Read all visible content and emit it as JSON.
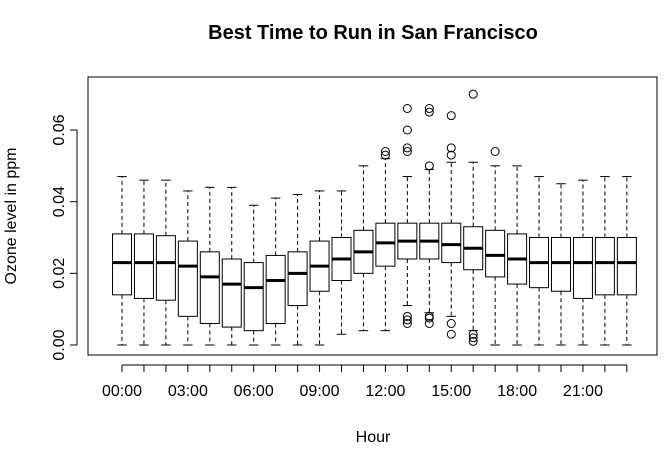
{
  "chart_data": {
    "type": "boxplot",
    "title": "Best Time to Run in San Francisco",
    "xlabel": "Hour",
    "ylabel": "Ozone level in ppm",
    "ylim": [
      0,
      0.072
    ],
    "yticks": [
      0.0,
      0.02,
      0.04,
      0.06
    ],
    "ytick_labels": [
      "0.00",
      "0.02",
      "0.04",
      "0.06"
    ],
    "categories": [
      "00:00",
      "01:00",
      "02:00",
      "03:00",
      "04:00",
      "05:00",
      "06:00",
      "07:00",
      "08:00",
      "09:00",
      "10:00",
      "11:00",
      "12:00",
      "13:00",
      "14:00",
      "15:00",
      "16:00",
      "17:00",
      "18:00",
      "19:00",
      "20:00",
      "21:00",
      "22:00",
      "23:00"
    ],
    "xtick_labels_shown": [
      {
        "index": 0,
        "label": "00:00"
      },
      {
        "index": 3,
        "label": "03:00"
      },
      {
        "index": 6,
        "label": "06:00"
      },
      {
        "index": 9,
        "label": "09:00"
      },
      {
        "index": 12,
        "label": "12:00"
      },
      {
        "index": 15,
        "label": "15:00"
      },
      {
        "index": 18,
        "label": "18:00"
      },
      {
        "index": 21,
        "label": "21:00"
      }
    ],
    "grid": false,
    "boxes": [
      {
        "whisker_low": 0.0,
        "q1": 0.014,
        "median": 0.023,
        "q3": 0.031,
        "whisker_high": 0.047,
        "outliers": []
      },
      {
        "whisker_low": 0.0,
        "q1": 0.013,
        "median": 0.023,
        "q3": 0.031,
        "whisker_high": 0.046,
        "outliers": []
      },
      {
        "whisker_low": 0.0,
        "q1": 0.0125,
        "median": 0.023,
        "q3": 0.0305,
        "whisker_high": 0.046,
        "outliers": []
      },
      {
        "whisker_low": 0.0,
        "q1": 0.008,
        "median": 0.022,
        "q3": 0.029,
        "whisker_high": 0.043,
        "outliers": []
      },
      {
        "whisker_low": 0.0,
        "q1": 0.006,
        "median": 0.019,
        "q3": 0.026,
        "whisker_high": 0.044,
        "outliers": []
      },
      {
        "whisker_low": 0.0,
        "q1": 0.005,
        "median": 0.017,
        "q3": 0.024,
        "whisker_high": 0.044,
        "outliers": []
      },
      {
        "whisker_low": 0.0,
        "q1": 0.004,
        "median": 0.016,
        "q3": 0.023,
        "whisker_high": 0.039,
        "outliers": []
      },
      {
        "whisker_low": 0.0,
        "q1": 0.006,
        "median": 0.018,
        "q3": 0.025,
        "whisker_high": 0.041,
        "outliers": []
      },
      {
        "whisker_low": 0.0,
        "q1": 0.011,
        "median": 0.02,
        "q3": 0.026,
        "whisker_high": 0.042,
        "outliers": []
      },
      {
        "whisker_low": 0.0,
        "q1": 0.015,
        "median": 0.022,
        "q3": 0.029,
        "whisker_high": 0.043,
        "outliers": []
      },
      {
        "whisker_low": 0.003,
        "q1": 0.018,
        "median": 0.024,
        "q3": 0.03,
        "whisker_high": 0.043,
        "outliers": []
      },
      {
        "whisker_low": 0.004,
        "q1": 0.02,
        "median": 0.026,
        "q3": 0.032,
        "whisker_high": 0.05,
        "outliers": []
      },
      {
        "whisker_low": 0.004,
        "q1": 0.022,
        "median": 0.0285,
        "q3": 0.034,
        "whisker_high": 0.052,
        "outliers": [
          0.053,
          0.054
        ]
      },
      {
        "whisker_low": 0.011,
        "q1": 0.024,
        "median": 0.029,
        "q3": 0.034,
        "whisker_high": 0.047,
        "outliers": [
          0.006,
          0.007,
          0.008,
          0.054,
          0.055,
          0.06,
          0.066
        ]
      },
      {
        "whisker_low": 0.009,
        "q1": 0.024,
        "median": 0.029,
        "q3": 0.034,
        "whisker_high": 0.049,
        "outliers": [
          0.006,
          0.0075,
          0.008,
          0.05,
          0.065,
          0.066
        ]
      },
      {
        "whisker_low": 0.008,
        "q1": 0.023,
        "median": 0.028,
        "q3": 0.034,
        "whisker_high": 0.051,
        "outliers": [
          0.003,
          0.006,
          0.053,
          0.055,
          0.064
        ]
      },
      {
        "whisker_low": 0.004,
        "q1": 0.021,
        "median": 0.027,
        "q3": 0.033,
        "whisker_high": 0.051,
        "outliers": [
          0.001,
          0.002,
          0.003,
          0.07
        ]
      },
      {
        "whisker_low": 0.0,
        "q1": 0.019,
        "median": 0.025,
        "q3": 0.032,
        "whisker_high": 0.05,
        "outliers": [
          0.054
        ]
      },
      {
        "whisker_low": 0.0,
        "q1": 0.017,
        "median": 0.024,
        "q3": 0.031,
        "whisker_high": 0.05,
        "outliers": []
      },
      {
        "whisker_low": 0.0,
        "q1": 0.016,
        "median": 0.023,
        "q3": 0.03,
        "whisker_high": 0.047,
        "outliers": []
      },
      {
        "whisker_low": 0.0,
        "q1": 0.015,
        "median": 0.023,
        "q3": 0.03,
        "whisker_high": 0.045,
        "outliers": []
      },
      {
        "whisker_low": 0.0,
        "q1": 0.013,
        "median": 0.023,
        "q3": 0.03,
        "whisker_high": 0.046,
        "outliers": []
      },
      {
        "whisker_low": 0.0,
        "q1": 0.014,
        "median": 0.023,
        "q3": 0.03,
        "whisker_high": 0.047,
        "outliers": []
      },
      {
        "whisker_low": 0.0,
        "q1": 0.014,
        "median": 0.023,
        "q3": 0.03,
        "whisker_high": 0.047,
        "outliers": []
      }
    ]
  }
}
